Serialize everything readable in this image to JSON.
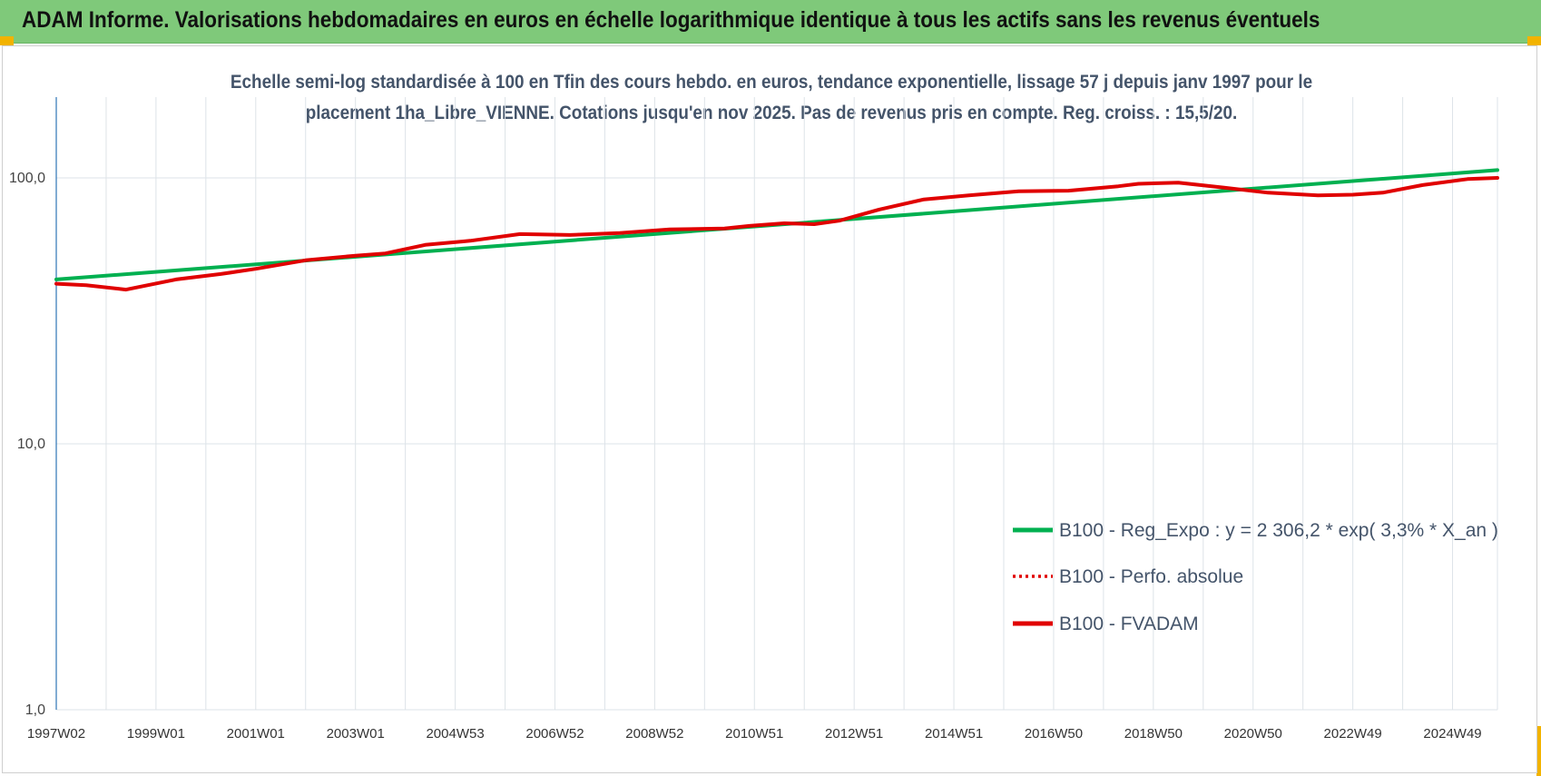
{
  "header": {
    "title": "ADAM Informe. Valorisations hebdomadaires en euros en échelle logarithmique identique à tous les actifs sans les revenus éventuels"
  },
  "colors": {
    "banner": "#7fc97a",
    "trend": "#00b050",
    "series": "#e00000",
    "axis": "#2e75b6",
    "grid": "#dde3e8",
    "corner": "#f2b300"
  },
  "chart_data": {
    "type": "line",
    "title_lines": [
      "Echelle semi-log standardisée à 100 en Tfin des cours hebdo. en euros, tendance exponentielle, lissage 57 j depuis janv 1997 pour le",
      "placement 1ha_Libre_VIENNE. Cotations jusqu'en nov 2025.  Pas de revenus pris en compte. Reg. croiss. : 15,5/20."
    ],
    "y_scale": "log",
    "ylim": [
      1,
      200
    ],
    "y_ticks": [
      1,
      10,
      100
    ],
    "y_tick_labels": [
      "1,0",
      "10,0",
      "100,0"
    ],
    "xlim": [
      1997.0,
      2025.9
    ],
    "x_ticks": [
      {
        "x": 1997.0,
        "label": "1997W02"
      },
      {
        "x": 1999.0,
        "label": "1999W01"
      },
      {
        "x": 2001.0,
        "label": "2001W01"
      },
      {
        "x": 2003.0,
        "label": "2003W01"
      },
      {
        "x": 2005.0,
        "label": "2004W53"
      },
      {
        "x": 2007.0,
        "label": "2006W52"
      },
      {
        "x": 2009.0,
        "label": "2008W52"
      },
      {
        "x": 2011.0,
        "label": "2010W51"
      },
      {
        "x": 2013.0,
        "label": "2012W51"
      },
      {
        "x": 2015.0,
        "label": "2014W51"
      },
      {
        "x": 2017.0,
        "label": "2016W50"
      },
      {
        "x": 2019.0,
        "label": "2018W50"
      },
      {
        "x": 2021.0,
        "label": "2020W50"
      },
      {
        "x": 2023.0,
        "label": "2022W49"
      },
      {
        "x": 2025.0,
        "label": "2024W49"
      }
    ],
    "grid": true,
    "legend_position": "bottom-right",
    "series": [
      {
        "name": "B100 - Reg_Expo : y = 2 306,2 * exp( 3,3% *  X_an )",
        "color": "#00b050",
        "style": "solid",
        "x": [
          1997.0,
          2025.9
        ],
        "y": [
          41.5,
          107
        ]
      },
      {
        "name": "B100 - Perfo. absolue",
        "color": "#e00000",
        "style": "dotted",
        "x": [],
        "y": []
      },
      {
        "name": "B100 - FVADAM",
        "color": "#e00000",
        "style": "solid",
        "x": [
          1997.0,
          1997.6,
          1998.4,
          1999.4,
          2000.3,
          2001.0,
          2002.0,
          2003.0,
          2003.6,
          2004.4,
          2005.3,
          2006.3,
          2007.3,
          2008.3,
          2009.3,
          2010.4,
          2010.9,
          2011.6,
          2012.2,
          2012.7,
          2013.5,
          2014.4,
          2015.3,
          2016.3,
          2017.3,
          2018.3,
          2018.7,
          2019.5,
          2020.4,
          2021.3,
          2022.3,
          2023.0,
          2023.6,
          2024.4,
          2025.3,
          2025.9
        ],
        "y": [
          40,
          39.5,
          38,
          41.5,
          43.5,
          45.5,
          49,
          51,
          52,
          56,
          58,
          61.5,
          61,
          62,
          64,
          64.5,
          66,
          67.5,
          67,
          69,
          76,
          83,
          86,
          89,
          89.5,
          93,
          95,
          96,
          92,
          88,
          86,
          86.5,
          88,
          94,
          99,
          100
        ]
      }
    ]
  }
}
